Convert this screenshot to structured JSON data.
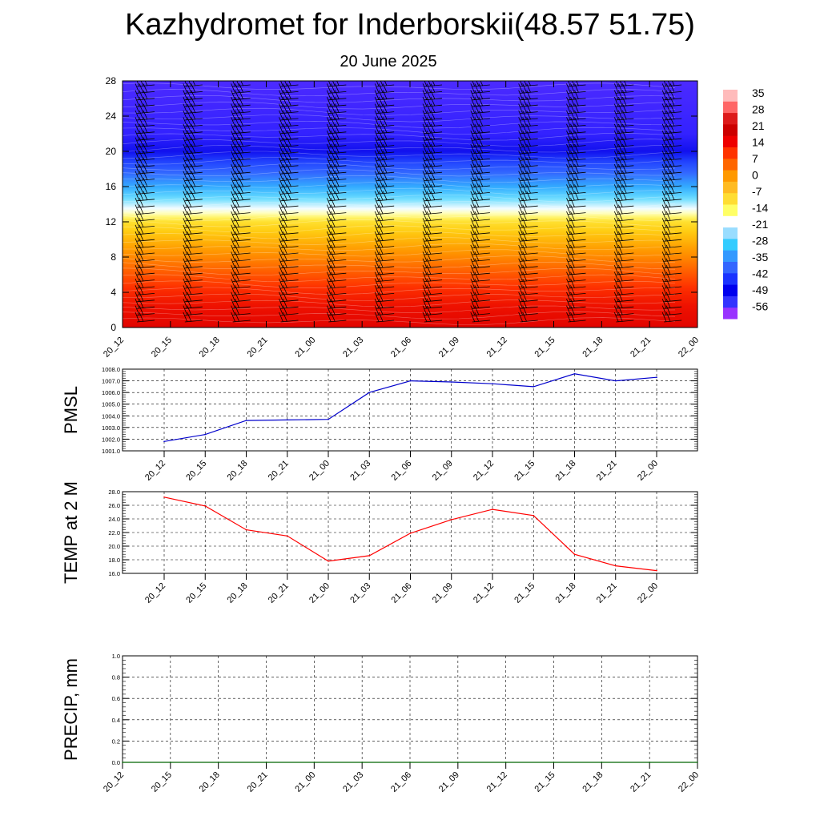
{
  "header": {
    "title": "Kazhydromet for Inderborskii(48.57 51.75)",
    "subtitle": "20 June 2025"
  },
  "colors": {
    "pmsl_line": "#0000cc",
    "temp_line": "#ff0000",
    "precip_line": "#006400",
    "colorbar": [
      "#9933ff",
      "#3333ff",
      "#0000ee",
      "#1a33ff",
      "#3366ff",
      "#3399ff",
      "#33ccff",
      "#99ddff",
      "#ffffff",
      "#ffff66",
      "#ffdd33",
      "#ffbb22",
      "#ff9900",
      "#ff6600",
      "#ff3300",
      "#ee0000",
      "#cc0000",
      "#dd1a1a",
      "#ff6666",
      "#ffbbbb"
    ]
  },
  "chart_data": [
    {
      "type": "heatmap",
      "name": "upper-air-temperature-wind",
      "ylim": [
        0,
        28
      ],
      "y_ticks": [
        "0",
        "4",
        "8",
        "12",
        "16",
        "20",
        "24",
        "28"
      ],
      "x_ticks": [
        "20_12",
        "20_15",
        "20_18",
        "20_21",
        "21_00",
        "21_03",
        "21_06",
        "21_09",
        "21_12",
        "21_15",
        "21_18",
        "21_21",
        "22_00"
      ],
      "colorbar_labels": [
        "35",
        "28",
        "21",
        "14",
        "7",
        "0",
        "-7",
        "-14",
        "-21",
        "-28",
        "-35",
        "-42",
        "-49",
        "-56"
      ],
      "temperature_profile": [
        {
          "y": 0,
          "t": 30
        },
        {
          "y": 4,
          "t": 20
        },
        {
          "y": 8,
          "t": 8
        },
        {
          "y": 12,
          "t": -3
        },
        {
          "y": 13,
          "t": -10
        },
        {
          "y": 14,
          "t": -18
        },
        {
          "y": 16,
          "t": -30
        },
        {
          "y": 18,
          "t": -40
        },
        {
          "y": 20,
          "t": -50
        },
        {
          "y": 22,
          "t": -56
        },
        {
          "y": 28,
          "t": -58
        }
      ],
      "wind_barbs": "present"
    },
    {
      "type": "line",
      "name": "pmsl",
      "ylabel": "PMSL",
      "ylim": [
        1001.0,
        1008.0
      ],
      "y_ticks": [
        "1001.0",
        "1002.0",
        "1003.0",
        "1004.0",
        "1005.0",
        "1006.0",
        "1007.0",
        "1008.0"
      ],
      "x_ticks": [
        "20_12",
        "20_15",
        "20_18",
        "20_21",
        "21_00",
        "21_03",
        "21_06",
        "21_09",
        "21_12",
        "21_15",
        "21_18",
        "21_21",
        "22_00"
      ],
      "values": [
        1001.8,
        1002.4,
        1003.6,
        1003.65,
        1003.7,
        1006.0,
        1007.0,
        1006.9,
        1006.75,
        1006.5,
        1007.6,
        1007.0,
        1007.3
      ]
    },
    {
      "type": "line",
      "name": "temp-2m",
      "ylabel": "TEMP at 2 M",
      "ylim": [
        16.0,
        28.0
      ],
      "y_ticks": [
        "16.0",
        "18.0",
        "20.0",
        "22.0",
        "24.0",
        "26.0",
        "28.0"
      ],
      "x_ticks": [
        "20_12",
        "20_15",
        "20_18",
        "20_21",
        "21_00",
        "21_03",
        "21_06",
        "21_09",
        "21_12",
        "21_15",
        "21_18",
        "21_21",
        "22_00"
      ],
      "values": [
        27.2,
        25.9,
        22.4,
        21.5,
        17.8,
        18.6,
        21.9,
        23.9,
        25.4,
        24.5,
        18.8,
        17.1,
        16.4
      ]
    },
    {
      "type": "line",
      "name": "precip",
      "ylabel": "PRECIP, mm",
      "ylim": [
        0.0,
        1.0
      ],
      "y_ticks": [
        "0.0",
        "0.2",
        "0.4",
        "0.6",
        "0.8",
        "1.0"
      ],
      "x_ticks": [
        "20_12",
        "20_15",
        "20_18",
        "20_21",
        "21_00",
        "21_03",
        "21_06",
        "21_09",
        "21_12",
        "21_15",
        "21_18",
        "21_21",
        "22_00"
      ],
      "values": [
        0,
        0,
        0,
        0,
        0,
        0,
        0,
        0,
        0,
        0,
        0,
        0,
        0
      ]
    }
  ]
}
